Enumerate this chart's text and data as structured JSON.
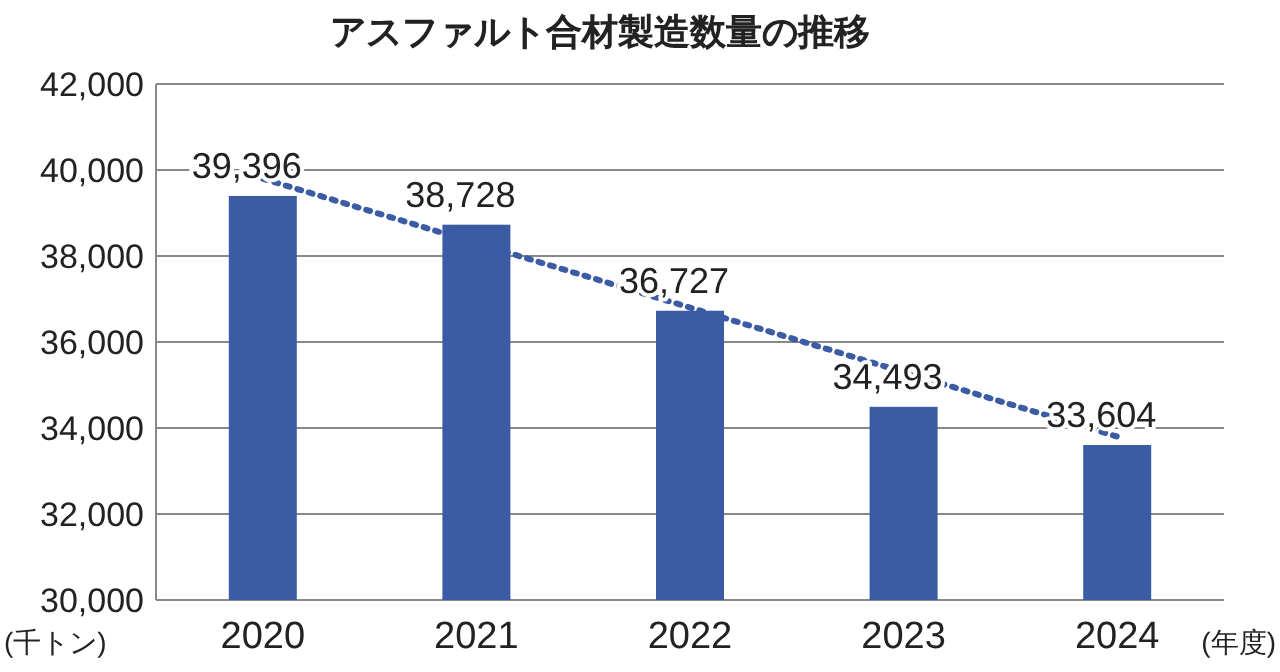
{
  "chart_data": {
    "type": "bar",
    "title": "アスファルト合材製造数量の推移",
    "xlabel": "(年度)",
    "ylabel": "(千トン)",
    "categories": [
      "2020",
      "2021",
      "2022",
      "2023",
      "2024"
    ],
    "series": [
      {
        "color": "#3b5ba5",
        "values": [
          39396,
          38728,
          36727,
          34493,
          33604
        ]
      },
      {
        "type": "line",
        "color": "#3b5ba5",
        "values": [
          39800,
          38300,
          36800,
          35300,
          33800
        ],
        "line_style": "dotted",
        "marker": "none"
      }
    ],
    "ylim": [
      30000,
      42000
    ],
    "yticks": [
      {
        "value": 30000,
        "label": "30,000"
      },
      {
        "value": 32000,
        "label": "32,000"
      },
      {
        "value": 34000,
        "label": "34,000"
      },
      {
        "value": 36000,
        "label": "36,000"
      },
      {
        "value": 38000,
        "label": "38,000"
      },
      {
        "value": 40000,
        "label": "40,000"
      },
      {
        "value": 42000,
        "label": "42,000"
      }
    ],
    "value_labels": [
      "39,396",
      "38,728",
      "36,727",
      "34,493",
      "33,604"
    ],
    "grid": "y"
  }
}
